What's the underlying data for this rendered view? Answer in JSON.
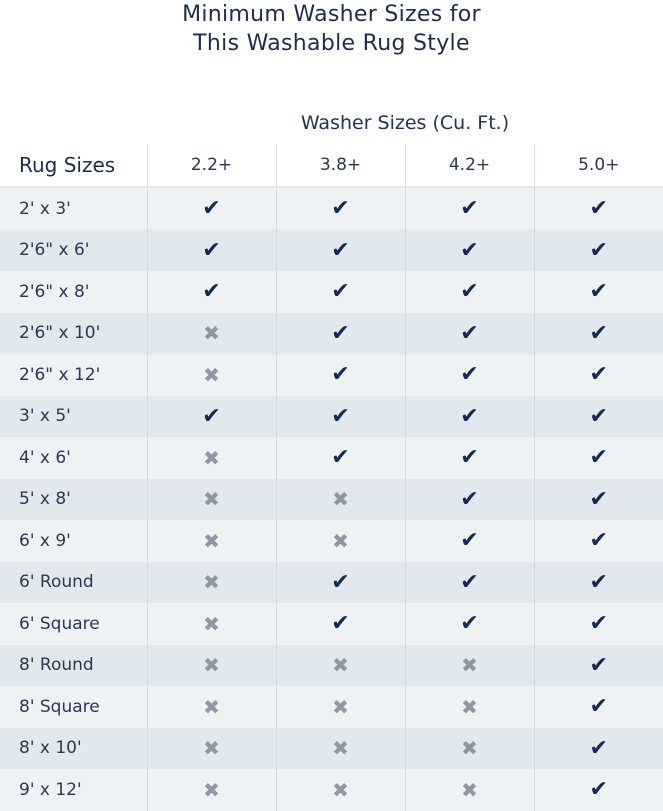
{
  "title": {
    "line1": "Minimum Washer Sizes for",
    "line2": "This Washable Rug Style"
  },
  "washer_sizes_label": "Washer Sizes (Cu. Ft.)",
  "rug_sizes_label": "Rug Sizes",
  "columns": [
    "2.2+",
    "3.8+",
    "4.2+",
    "5.0+"
  ],
  "icons": {
    "yes": "check-icon",
    "no": "x-icon"
  },
  "colors": {
    "check": "#142a4e",
    "cross": "#8e97a3",
    "row_light": "#eef2f5",
    "row_dark": "#e1e8ee"
  },
  "rows": [
    {
      "rug": "2' x 3'",
      "fits": [
        true,
        true,
        true,
        true
      ]
    },
    {
      "rug": "2'6\" x 6'",
      "fits": [
        true,
        true,
        true,
        true
      ]
    },
    {
      "rug": "2'6\" x 8'",
      "fits": [
        true,
        true,
        true,
        true
      ]
    },
    {
      "rug": "2'6\" x 10'",
      "fits": [
        false,
        true,
        true,
        true
      ]
    },
    {
      "rug": "2'6\" x 12'",
      "fits": [
        false,
        true,
        true,
        true
      ]
    },
    {
      "rug": "3' x 5'",
      "fits": [
        true,
        true,
        true,
        true
      ]
    },
    {
      "rug": "4' x 6'",
      "fits": [
        false,
        true,
        true,
        true
      ]
    },
    {
      "rug": "5' x 8'",
      "fits": [
        false,
        false,
        true,
        true
      ]
    },
    {
      "rug": "6' x 9'",
      "fits": [
        false,
        false,
        true,
        true
      ]
    },
    {
      "rug": "6' Round",
      "fits": [
        false,
        true,
        true,
        true
      ]
    },
    {
      "rug": "6' Square",
      "fits": [
        false,
        true,
        true,
        true
      ]
    },
    {
      "rug": "8' Round",
      "fits": [
        false,
        false,
        false,
        true
      ]
    },
    {
      "rug": "8' Square",
      "fits": [
        false,
        false,
        false,
        true
      ]
    },
    {
      "rug": "8' x 10'",
      "fits": [
        false,
        false,
        false,
        true
      ]
    },
    {
      "rug": "9' x 12'",
      "fits": [
        false,
        false,
        false,
        true
      ]
    }
  ]
}
